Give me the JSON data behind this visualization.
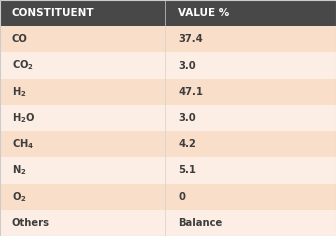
{
  "header": [
    "CONSTITUENT",
    "VALUE %"
  ],
  "rows": [
    [
      "CO",
      "37.4"
    ],
    [
      "CO₂",
      "3.0"
    ],
    [
      "H₂",
      "47.1"
    ],
    [
      "H₂O",
      "3.0"
    ],
    [
      "CH₄",
      "4.2"
    ],
    [
      "N₂",
      "5.1"
    ],
    [
      "O₂",
      "0"
    ],
    [
      "Others",
      "Balance"
    ]
  ],
  "math_map": {
    "CO₂": "$\\mathbf{CO_2}$",
    "H₂": "$\\mathbf{H_2}$",
    "H₂O": "$\\mathbf{H_2O}$",
    "CH₄": "$\\mathbf{CH_4}$",
    "N₂": "$\\mathbf{N_2}$",
    "O₂": "$\\mathbf{O_2}$"
  },
  "header_bg": "#484848",
  "header_text": "#ffffff",
  "row_bg_odd": "#f9deca",
  "row_bg_even": "#fdeee5",
  "cell_text": "#3d3d3d",
  "col_split": 0.49,
  "figsize": [
    3.36,
    2.36
  ],
  "dpi": 100,
  "header_fontsize": 7.5,
  "cell_fontsize": 7.2
}
